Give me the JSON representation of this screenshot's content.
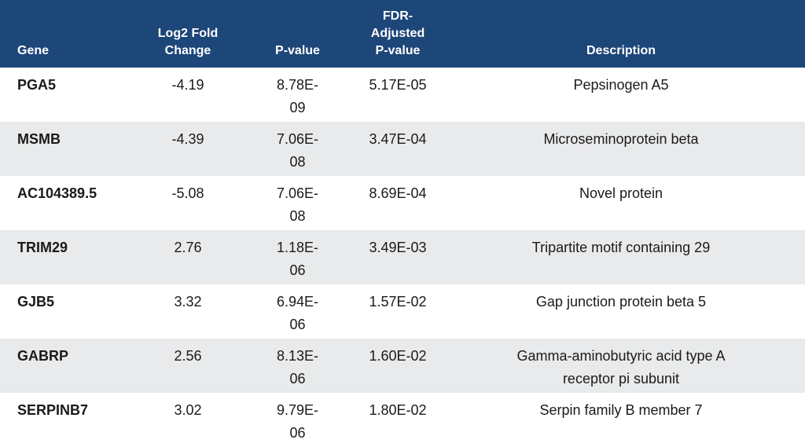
{
  "table": {
    "headers": {
      "gene": "Gene",
      "lfc_line1": "Log2 Fold",
      "lfc_line2": "Change",
      "pvalue": "P-value",
      "fdr_line1": "FDR-",
      "fdr_line2": "Adjusted",
      "fdr_line3": "P-value",
      "description": "Description"
    },
    "rows": [
      {
        "gene": "PGA5",
        "lfc": "-4.19",
        "p_line1": "8.78E-",
        "p_line2": "09",
        "fdr": "5.17E-05",
        "desc_line1": "Pepsinogen A5",
        "desc_line2": ""
      },
      {
        "gene": "MSMB",
        "lfc": "-4.39",
        "p_line1": "7.06E-",
        "p_line2": "08",
        "fdr": "3.47E-04",
        "desc_line1": "Microseminoprotein beta",
        "desc_line2": ""
      },
      {
        "gene": "AC104389.5",
        "lfc": "-5.08",
        "p_line1": "7.06E-",
        "p_line2": "08",
        "fdr": "8.69E-04",
        "desc_line1": "Novel protein",
        "desc_line2": ""
      },
      {
        "gene": "TRIM29",
        "lfc": "2.76",
        "p_line1": "1.18E-",
        "p_line2": "06",
        "fdr": "3.49E-03",
        "desc_line1": "Tripartite motif containing 29",
        "desc_line2": ""
      },
      {
        "gene": "GJB5",
        "lfc": "3.32",
        "p_line1": "6.94E-",
        "p_line2": "06",
        "fdr": "1.57E-02",
        "desc_line1": "Gap junction protein beta 5",
        "desc_line2": ""
      },
      {
        "gene": "GABRP",
        "lfc": "2.56",
        "p_line1": "8.13E-",
        "p_line2": "06",
        "fdr": "1.60E-02",
        "desc_line1": "Gamma-aminobutyric acid type A",
        "desc_line2": "receptor pi subunit"
      },
      {
        "gene": "SERPINB7",
        "lfc": "3.02",
        "p_line1": "9.79E-",
        "p_line2": "06",
        "fdr": "1.80E-02",
        "desc_line1": "Serpin family B member 7",
        "desc_line2": ""
      }
    ]
  },
  "colors": {
    "header_bg": "#1d4679",
    "header_text": "#ffffff",
    "stripe_bg": "#e9eaeb"
  }
}
